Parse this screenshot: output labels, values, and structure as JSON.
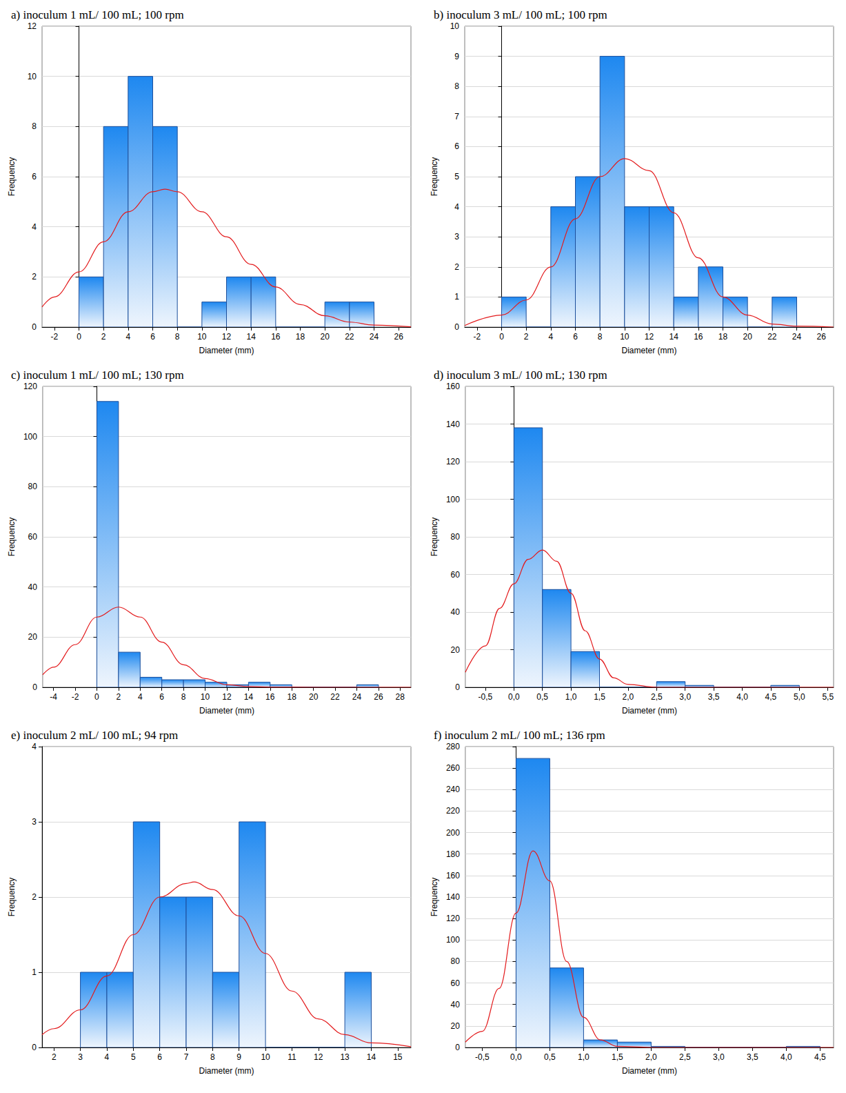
{
  "chart_data": [
    {
      "type": "histogram",
      "title": "a) inoculum 1 mL/ 100 mL; 100 rpm",
      "x_label": "Diameter (mm)",
      "y_label": "Frequency",
      "bins": [
        0,
        2,
        4,
        6,
        8,
        10,
        12,
        14,
        16,
        18,
        20,
        22,
        24
      ],
      "counts": [
        2,
        8,
        10,
        8,
        0,
        1,
        2,
        2,
        0,
        0,
        1,
        1
      ],
      "color": "#1e88f0",
      "fit_curve": {
        "x": [
          -3,
          -2,
          0,
          2,
          4,
          6,
          7,
          8,
          10,
          12,
          14,
          16,
          18,
          20,
          22,
          24,
          27
        ],
        "y": [
          0.8,
          1.2,
          2.2,
          3.4,
          4.6,
          5.4,
          5.5,
          5.4,
          4.6,
          3.6,
          2.5,
          1.6,
          0.9,
          0.45,
          0.2,
          0.08,
          0.01
        ],
        "color": "#e31a1c"
      },
      "xlim": [
        -3,
        27
      ],
      "xticks": [
        -2,
        0,
        2,
        4,
        6,
        8,
        10,
        12,
        14,
        16,
        18,
        20,
        22,
        24,
        26
      ],
      "ylim": [
        0,
        12
      ],
      "yticks": [
        0,
        2,
        4,
        6,
        8,
        10,
        12
      ],
      "grid": true
    },
    {
      "type": "histogram",
      "title": "b) inoculum 3 mL/ 100 mL; 100 rpm",
      "x_label": "Diameter (mm)",
      "y_label": "Frequency",
      "bins": [
        0,
        2,
        4,
        6,
        8,
        10,
        12,
        14,
        16,
        18,
        20,
        22,
        24
      ],
      "counts": [
        1,
        0,
        4,
        5,
        9,
        4,
        4,
        1,
        2,
        1,
        0,
        1
      ],
      "color": "#1e88f0",
      "fit_curve": {
        "x": [
          -3,
          0,
          2,
          4,
          6,
          8,
          10,
          12,
          14,
          16,
          18,
          20,
          22,
          24,
          27
        ],
        "y": [
          0.05,
          0.4,
          0.9,
          2.0,
          3.6,
          5.0,
          5.6,
          5.2,
          3.8,
          2.3,
          1.0,
          0.4,
          0.1,
          0.03,
          0.0
        ],
        "color": "#e31a1c"
      },
      "xlim": [
        -3,
        27
      ],
      "xticks": [
        -2,
        0,
        2,
        4,
        6,
        8,
        10,
        12,
        14,
        16,
        18,
        20,
        22,
        24,
        26
      ],
      "ylim": [
        0,
        10
      ],
      "yticks": [
        0,
        1,
        2,
        3,
        4,
        5,
        6,
        7,
        8,
        9,
        10
      ],
      "grid": true
    },
    {
      "type": "histogram",
      "title": "c) inoculum 1 mL/ 100 mL; 130 rpm",
      "x_label": "Diameter (mm)",
      "y_label": "Frequency",
      "bins": [
        0,
        2,
        4,
        6,
        8,
        10,
        12,
        14,
        16,
        18,
        20,
        22,
        24,
        26
      ],
      "counts": [
        114,
        14,
        4,
        3,
        3,
        2,
        1,
        2,
        1,
        0,
        0,
        0,
        1
      ],
      "color": "#1e88f0",
      "fit_curve": {
        "x": [
          -5,
          -4,
          -2,
          0,
          2,
          4,
          6,
          8,
          10,
          12,
          14,
          16,
          20,
          29
        ],
        "y": [
          5,
          8,
          17,
          28,
          32,
          28,
          18,
          9,
          3.5,
          1,
          0.3,
          0.05,
          0,
          0
        ],
        "color": "#e31a1c"
      },
      "xlim": [
        -5,
        29
      ],
      "xticks": [
        -4,
        -2,
        0,
        2,
        4,
        6,
        8,
        10,
        12,
        14,
        16,
        18,
        20,
        22,
        24,
        26,
        28
      ],
      "ylim": [
        0,
        120
      ],
      "yticks": [
        0,
        20,
        40,
        60,
        80,
        100,
        120
      ],
      "grid": true
    },
    {
      "type": "histogram",
      "title": "d) inoculum 3 mL/ 100 mL; 130 rpm",
      "x_label": "Diameter (mm)",
      "y_label": "Frequency",
      "bins": [
        0,
        0.5,
        1,
        1.5,
        2,
        2.5,
        3,
        3.5,
        4,
        4.5,
        5
      ],
      "counts": [
        138,
        52,
        19,
        0,
        0,
        3,
        1,
        0,
        0,
        1
      ],
      "color": "#1e88f0",
      "fit_curve": {
        "x": [
          -0.85,
          -0.5,
          -0.25,
          0,
          0.25,
          0.5,
          0.75,
          1,
          1.25,
          1.5,
          1.75,
          2,
          2.5,
          5.6
        ],
        "y": [
          8,
          22,
          42,
          55,
          68,
          73,
          67,
          50,
          30,
          15,
          5,
          1.5,
          0,
          0
        ],
        "color": "#e31a1c"
      },
      "xlim": [
        -0.85,
        5.6
      ],
      "xticks": [
        {
          "value": -0.5,
          "label": "-0,5"
        },
        {
          "value": 0,
          "label": "0,0"
        },
        {
          "value": 0.5,
          "label": "0,5"
        },
        {
          "value": 1,
          "label": "1,0"
        },
        {
          "value": 1.5,
          "label": "1,5"
        },
        {
          "value": 2,
          "label": "2,0"
        },
        {
          "value": 2.5,
          "label": "2,5"
        },
        {
          "value": 3,
          "label": "3,0"
        },
        {
          "value": 3.5,
          "label": "3,5"
        },
        {
          "value": 4,
          "label": "4,0"
        },
        {
          "value": 4.5,
          "label": "4,5"
        },
        {
          "value": 5,
          "label": "5,0"
        },
        {
          "value": 5.5,
          "label": "5,5"
        }
      ],
      "ylim": [
        0,
        160
      ],
      "yticks": [
        0,
        20,
        40,
        60,
        80,
        100,
        120,
        140,
        160
      ],
      "grid": true
    },
    {
      "type": "histogram",
      "title": "e) inoculum 2 mL/ 100 mL; 94 rpm",
      "x_label": "Diameter (mm)",
      "y_label": "Frequency",
      "bins": [
        3,
        4,
        5,
        6,
        7,
        8,
        9,
        10,
        11,
        12,
        13,
        14
      ],
      "counts": [
        1,
        1,
        3,
        2,
        2,
        1,
        3,
        0,
        0,
        0,
        1
      ],
      "color": "#1e88f0",
      "fit_curve": {
        "x": [
          1.55,
          2,
          3,
          4,
          5,
          6,
          7,
          7.3,
          8,
          9,
          10,
          11,
          12,
          13,
          14,
          15.5
        ],
        "y": [
          0.17,
          0.25,
          0.5,
          0.95,
          1.5,
          2.0,
          2.18,
          2.2,
          2.1,
          1.75,
          1.25,
          0.75,
          0.38,
          0.17,
          0.06,
          0.01
        ],
        "color": "#e31a1c"
      },
      "xlim": [
        1.55,
        15.5
      ],
      "xticks": [
        2,
        3,
        4,
        5,
        6,
        7,
        8,
        9,
        10,
        11,
        12,
        13,
        14,
        15
      ],
      "ylim": [
        0,
        4
      ],
      "yticks": [
        0,
        1,
        2,
        3,
        4
      ],
      "grid": true
    },
    {
      "type": "histogram",
      "title": "f) inoculum 2 mL/ 100 mL; 136 rpm",
      "x_label": "Diameter (mm)",
      "y_label": "Frequency",
      "bins": [
        0,
        0.5,
        1,
        1.5,
        2,
        2.5,
        3,
        3.5,
        4,
        4.5
      ],
      "counts": [
        269,
        74,
        7,
        5,
        1,
        0,
        0,
        0,
        1
      ],
      "color": "#1e88f0",
      "fit_curve": {
        "x": [
          -0.75,
          -0.5,
          -0.25,
          0,
          0.25,
          0.5,
          0.75,
          1,
          1.25,
          1.5,
          2,
          4.7
        ],
        "y": [
          5,
          15,
          55,
          125,
          183,
          155,
          80,
          28,
          7,
          1,
          0,
          0
        ],
        "color": "#e31a1c"
      },
      "xlim": [
        -0.75,
        4.7
      ],
      "xticks": [
        {
          "value": -0.5,
          "label": "-0,5"
        },
        {
          "value": 0,
          "label": "0,0"
        },
        {
          "value": 0.5,
          "label": "0,5"
        },
        {
          "value": 1,
          "label": "1,0"
        },
        {
          "value": 1.5,
          "label": "1,5"
        },
        {
          "value": 2,
          "label": "2,0"
        },
        {
          "value": 2.5,
          "label": "2,5"
        },
        {
          "value": 3,
          "label": "3,0"
        },
        {
          "value": 3.5,
          "label": "3,5"
        },
        {
          "value": 4,
          "label": "4,0"
        },
        {
          "value": 4.5,
          "label": "4,5"
        }
      ],
      "ylim": [
        0,
        280
      ],
      "yticks": [
        0,
        20,
        40,
        60,
        80,
        100,
        120,
        140,
        160,
        180,
        200,
        220,
        240,
        260,
        280
      ],
      "grid": true
    }
  ]
}
